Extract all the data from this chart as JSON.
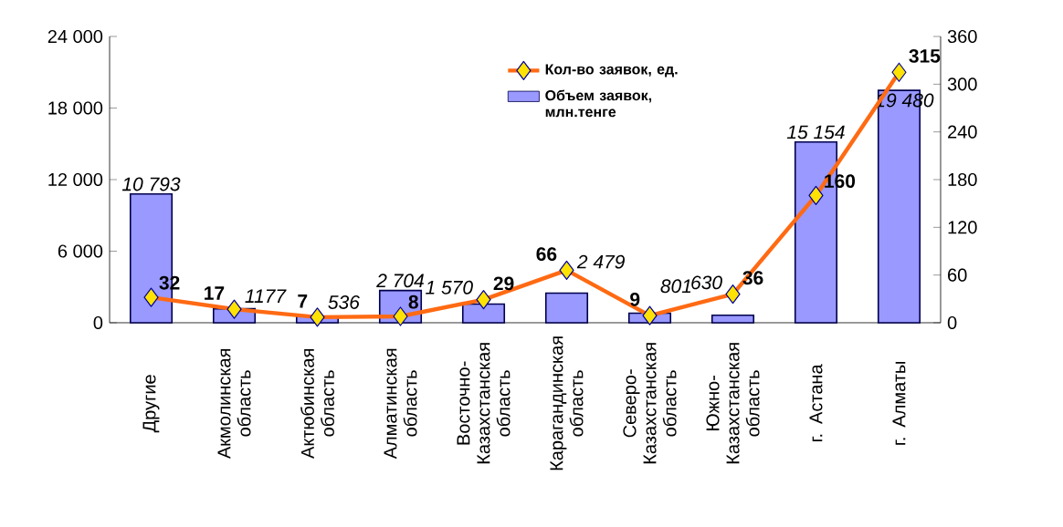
{
  "chart_data": {
    "type": "bar",
    "categories": [
      "Другие",
      "Акмолинская область",
      "Актюбинская область",
      "Алматинская область",
      "Восточно-Казахстанская область",
      "Карагандинская область",
      "Северо-Казахстанская область",
      "Южно-Казахстанская область",
      "г. Астана",
      "г. Алматы"
    ],
    "series": [
      {
        "type": "line",
        "axis": "y2",
        "name": "Кол-во заявок, ед.",
        "color": "#ff6a13",
        "marker": "diamond",
        "values": [
          32,
          17,
          7,
          8,
          29,
          66,
          9,
          36,
          160,
          315
        ],
        "value_labels": [
          "32",
          "17",
          "7",
          "8",
          "29",
          "66",
          "9",
          "36",
          "160",
          "315"
        ]
      },
      {
        "type": "bar",
        "name": "Объем заявок, млн.тенге",
        "color": "#9999ff",
        "values": [
          10793,
          1177,
          536,
          2704,
          1570,
          2479,
          801,
          630,
          15154,
          19480
        ],
        "value_labels": [
          "10 793",
          "1177",
          "536",
          "2 704",
          "1 570",
          "2 479",
          "801",
          "630",
          "15 154",
          "19 480"
        ]
      }
    ],
    "ylim": [
      0,
      24000
    ],
    "yticks": [
      {
        "value": 0,
        "label": "0"
      },
      {
        "value": 6000,
        "label": "6 000"
      },
      {
        "value": 12000,
        "label": "12 000"
      },
      {
        "value": 18000,
        "label": "18 000"
      },
      {
        "value": 24000,
        "label": "24 000"
      }
    ],
    "y2lim": [
      0,
      360
    ],
    "y2ticks": [
      0,
      60,
      120,
      180,
      240,
      300,
      360
    ],
    "legend": "top",
    "grid": false
  }
}
